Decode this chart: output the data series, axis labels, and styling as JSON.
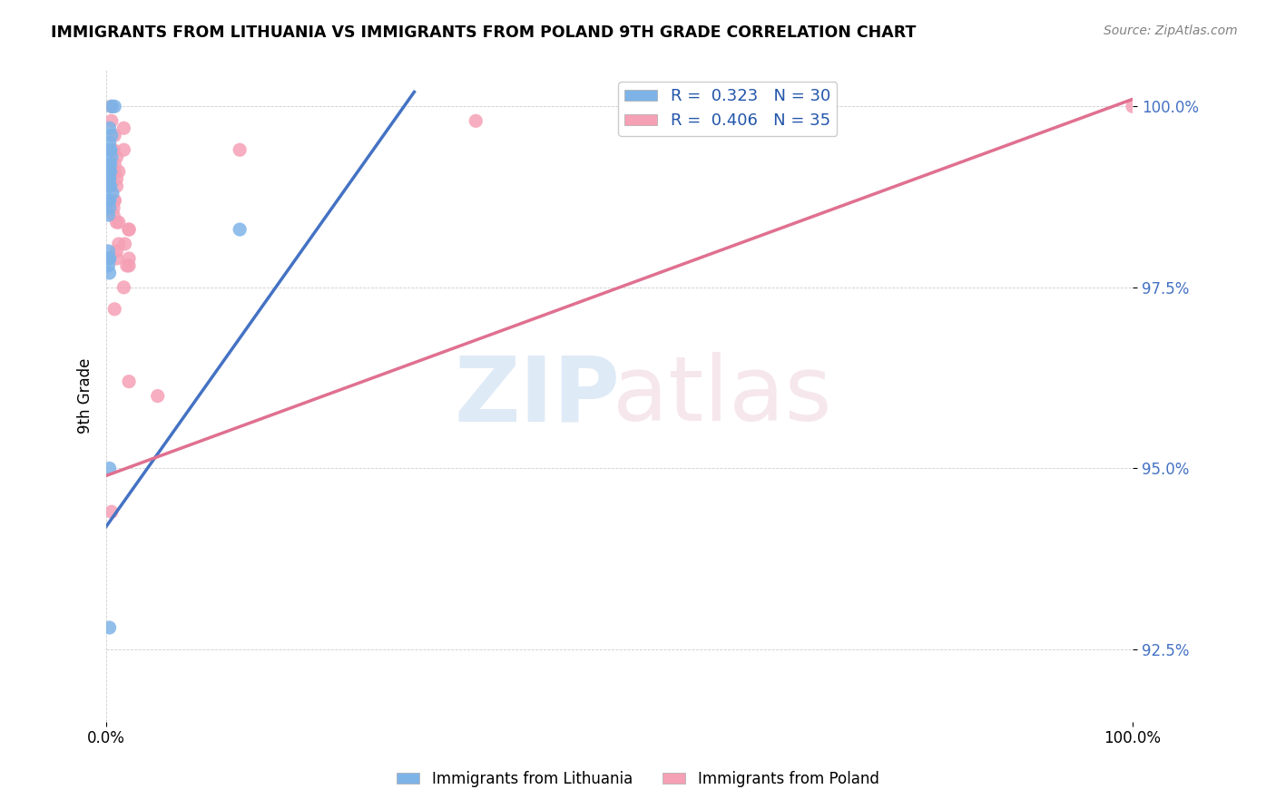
{
  "title": "IMMIGRANTS FROM LITHUANIA VS IMMIGRANTS FROM POLAND 9TH GRADE CORRELATION CHART",
  "source": "Source: ZipAtlas.com",
  "ylabel": "9th Grade",
  "x_min": 0.0,
  "x_max": 1.0,
  "y_min": 0.915,
  "y_max": 1.005,
  "color_blue": "#7EB3E8",
  "color_pink": "#F5A0B5",
  "line_blue": "#4472C4",
  "line_pink": "#E07090",
  "blue_points_x": [
    0.005,
    0.008,
    0.003,
    0.005,
    0.003,
    0.004,
    0.004,
    0.005,
    0.003,
    0.004,
    0.004,
    0.003,
    0.003,
    0.002,
    0.003,
    0.004,
    0.003,
    0.006,
    0.003,
    0.003,
    0.003,
    0.002,
    0.13,
    0.002,
    0.003,
    0.003,
    0.002,
    0.003,
    0.003,
    0.003
  ],
  "blue_points_y": [
    1.0,
    1.0,
    0.997,
    0.996,
    0.995,
    0.994,
    0.994,
    0.993,
    0.992,
    0.992,
    0.991,
    0.991,
    0.99,
    0.99,
    0.99,
    0.989,
    0.989,
    0.988,
    0.987,
    0.987,
    0.986,
    0.985,
    0.983,
    0.98,
    0.979,
    0.979,
    0.978,
    0.977,
    0.95,
    0.928
  ],
  "pink_points_x": [
    0.005,
    0.36,
    0.005,
    0.017,
    0.008,
    0.13,
    0.017,
    0.007,
    0.01,
    0.008,
    0.008,
    0.012,
    0.01,
    0.01,
    0.008,
    0.008,
    0.007,
    0.007,
    0.01,
    0.012,
    0.022,
    0.022,
    0.018,
    0.012,
    0.01,
    0.01,
    0.022,
    0.022,
    0.02,
    0.017,
    0.008,
    0.022,
    0.05,
    0.005,
    1.0
  ],
  "pink_points_y": [
    1.0,
    0.998,
    0.998,
    0.997,
    0.996,
    0.994,
    0.994,
    0.994,
    0.993,
    0.992,
    0.991,
    0.991,
    0.99,
    0.989,
    0.987,
    0.987,
    0.986,
    0.985,
    0.984,
    0.984,
    0.983,
    0.983,
    0.981,
    0.981,
    0.98,
    0.979,
    0.979,
    0.978,
    0.978,
    0.975,
    0.972,
    0.962,
    0.96,
    0.944,
    1.0
  ],
  "blue_line_x": [
    0.0,
    0.3
  ],
  "blue_line_y": [
    0.942,
    1.002
  ],
  "pink_line_x": [
    0.0,
    1.0
  ],
  "pink_line_y": [
    0.949,
    1.001
  ],
  "legend_label_blue": "R =  0.323   N = 30",
  "legend_label_pink": "R =  0.406   N = 35",
  "bottom_label_blue": "Immigrants from Lithuania",
  "bottom_label_pink": "Immigrants from Poland",
  "y_ticks": [
    0.925,
    0.95,
    0.975,
    1.0
  ],
  "y_tick_labels": [
    "92.5%",
    "95.0%",
    "97.5%",
    "100.0%"
  ],
  "x_ticks": [
    0.0,
    1.0
  ],
  "x_tick_labels": [
    "0.0%",
    "100.0%"
  ]
}
